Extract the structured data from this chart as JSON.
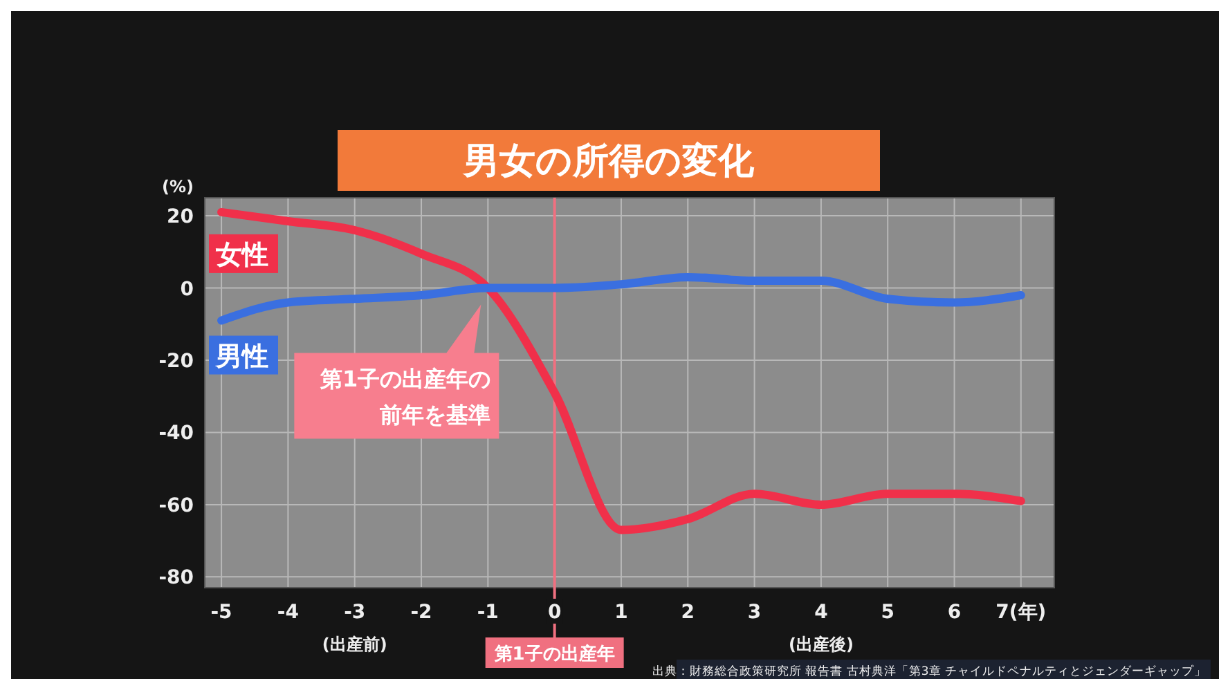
{
  "chart_data": {
    "type": "line",
    "title": "男女の所得の変化",
    "ylabel": "(%)",
    "x": [
      -5,
      -4,
      -3,
      -2,
      -1,
      0,
      1,
      2,
      3,
      4,
      5,
      6,
      7
    ],
    "series": [
      {
        "name": "女性",
        "color": "#f0304a",
        "values": [
          21,
          18.5,
          16,
          9.5,
          0,
          -29,
          -67,
          -64,
          -57,
          -60,
          -57,
          -57,
          -59
        ]
      },
      {
        "name": "男性",
        "color": "#3a6fe0",
        "values": [
          -9,
          -4,
          -3,
          -2,
          0,
          0,
          1,
          3,
          2,
          2,
          -3,
          -4,
          -2
        ]
      }
    ],
    "xlim": [
      -5.25,
      7.5
    ],
    "xticks": [
      -5,
      -4,
      -3,
      -2,
      -1,
      0,
      1,
      2,
      3,
      4,
      5,
      6,
      {
        "value": 7,
        "label": "7(年)"
      }
    ],
    "ylim": [
      -83,
      25
    ],
    "yticks": [
      20,
      0,
      -20,
      -40,
      -60,
      -80
    ],
    "grid": true,
    "legend": false,
    "marker": "none",
    "line_style": "solid",
    "ref_lines": [
      {
        "axis": "x",
        "value": 0,
        "label": "第1子の出産年",
        "color": "#f07080"
      }
    ],
    "annotations": [
      "(出産前)",
      "(出産後)",
      "第1子の出産年の前年を基準",
      "出典：財務総合政策研究所 報告書 古村典洋「第3章 チャイルドペナルティとジェンダーギャップ」"
    ]
  }
}
